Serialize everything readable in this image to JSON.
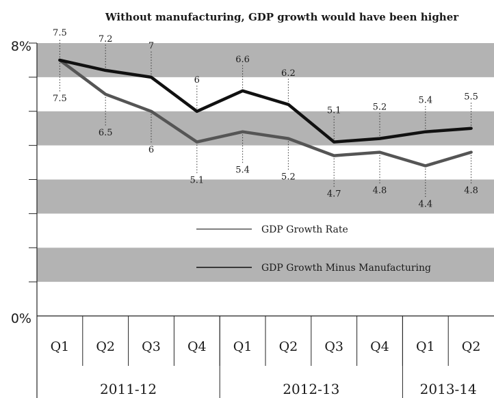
{
  "chart_data": {
    "type": "line",
    "title": "Without manufacturing, GDP growth would have been higher",
    "y_axis": {
      "min": 0,
      "max": 8,
      "top_label": "8%",
      "bottom_label": "0%"
    },
    "grid_bands": true,
    "categories": [
      "Q1",
      "Q2",
      "Q3",
      "Q4",
      "Q1",
      "Q2",
      "Q3",
      "Q4",
      "Q1",
      "Q2"
    ],
    "years": [
      {
        "label": "2011-12",
        "quarters": 4
      },
      {
        "label": "2012-13",
        "quarters": 4
      },
      {
        "label": "2013-14",
        "quarters": 2
      }
    ],
    "series": [
      {
        "name": "GDP Growth Rate",
        "color": "#555555",
        "labels_position": "below",
        "values": [
          7.5,
          6.5,
          6,
          5.1,
          5.4,
          5.2,
          4.7,
          4.8,
          4.4,
          4.8
        ],
        "value_labels": [
          "7.5",
          "6.5",
          "6",
          "5.1",
          "5.4",
          "5.2",
          "4.7",
          "4.8",
          "4.4",
          "4.8"
        ]
      },
      {
        "name": "GDP Growth Minus Manufacturing",
        "color": "#111111",
        "labels_position": "above",
        "values": [
          7.5,
          7.2,
          7,
          6,
          6.6,
          6.2,
          5.1,
          5.2,
          5.4,
          5.5
        ],
        "value_labels": [
          "7.5",
          "7.2",
          "7",
          "6",
          "6.6",
          "6.2",
          "5.1",
          "5.2",
          "5.4",
          "5.5"
        ]
      }
    ],
    "legend": [
      {
        "label": "GDP Growth Rate",
        "color": "#555555"
      },
      {
        "label": "GDP Growth Minus Manufacturing",
        "color": "#111111"
      }
    ],
    "legend_position": "center",
    "band_color": "#b3b3b3"
  }
}
